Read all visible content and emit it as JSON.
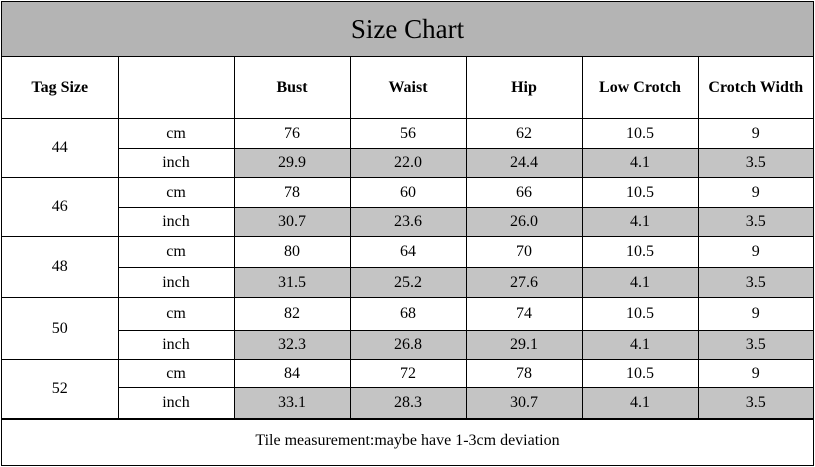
{
  "title": "Size Chart",
  "headers": [
    "Tag Size",
    "",
    "Bust",
    "Waist",
    "Hip",
    "Low Crotch",
    "Crotch Width"
  ],
  "unit_cm": "cm",
  "unit_inch": "inch",
  "rows": [
    {
      "size": "44",
      "cm": [
        "76",
        "56",
        "62",
        "10.5",
        "9"
      ],
      "inch": [
        "29.9",
        "22.0",
        "24.4",
        "4.1",
        "3.5"
      ]
    },
    {
      "size": "46",
      "cm": [
        "78",
        "60",
        "66",
        "10.5",
        "9"
      ],
      "inch": [
        "30.7",
        "23.6",
        "26.0",
        "4.1",
        "3.5"
      ]
    },
    {
      "size": "48",
      "cm": [
        "80",
        "64",
        "70",
        "10.5",
        "9"
      ],
      "inch": [
        "31.5",
        "25.2",
        "27.6",
        "4.1",
        "3.5"
      ]
    },
    {
      "size": "50",
      "cm": [
        "82",
        "68",
        "74",
        "10.5",
        "9"
      ],
      "inch": [
        "32.3",
        "26.8",
        "29.1",
        "4.1",
        "3.5"
      ]
    },
    {
      "size": "52",
      "cm": [
        "84",
        "72",
        "78",
        "10.5",
        "9"
      ],
      "inch": [
        "33.1",
        "28.3",
        "30.7",
        "4.1",
        "3.5"
      ]
    }
  ],
  "footer": "Tile measurement:maybe have 1-3cm deviation",
  "colors": {
    "header_bg": "#b4b4b4",
    "inch_row_bg": "#c4c4c4"
  }
}
